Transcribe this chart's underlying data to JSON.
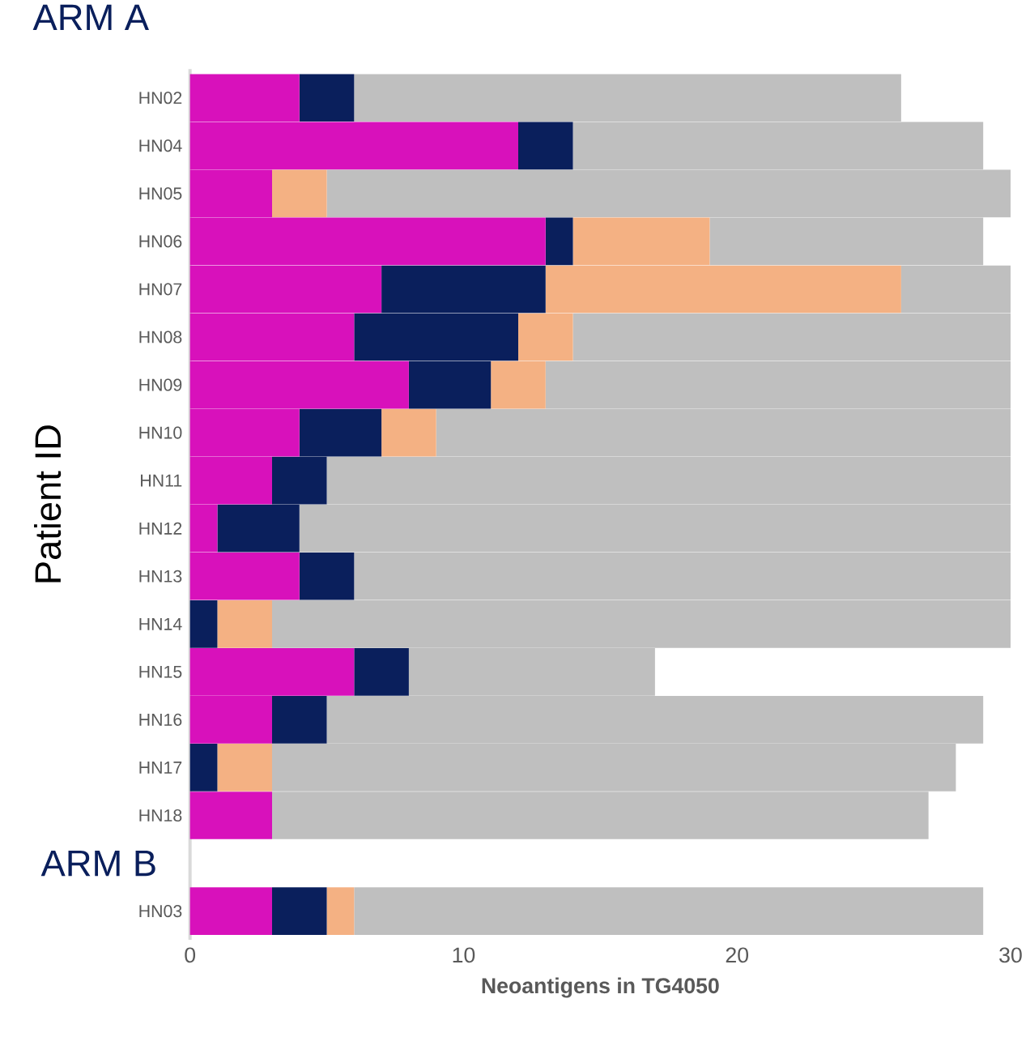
{
  "chart_data": {
    "type": "bar",
    "orientation": "horizontal",
    "stacked": true,
    "xlabel": "Neoantigens in TG4050",
    "ylabel": "Patient ID",
    "categories": [
      "HN02",
      "HN04",
      "HN05",
      "HN06",
      "HN07",
      "HN08",
      "HN09",
      "HN10",
      "HN11",
      "HN12",
      "HN13",
      "HN14",
      "HN15",
      "HN16",
      "HN17",
      "HN18",
      null,
      "HN03"
    ],
    "series": [
      {
        "color": "#d811bb",
        "values": [
          4,
          12,
          3,
          13,
          7,
          6,
          8,
          4,
          3,
          1,
          4,
          0,
          6,
          3,
          0,
          3,
          null,
          3
        ]
      },
      {
        "color": "#0a1f5c",
        "values": [
          2,
          2,
          0,
          1,
          6,
          6,
          3,
          3,
          2,
          3,
          2,
          1,
          2,
          2,
          1,
          0,
          null,
          2
        ]
      },
      {
        "color": "#f4b183",
        "values": [
          0,
          0,
          2,
          5,
          13,
          2,
          2,
          2,
          0,
          0,
          0,
          2,
          0,
          0,
          2,
          0,
          null,
          1
        ]
      },
      {
        "color": "#bfbfbf",
        "values": [
          20,
          15,
          25,
          10,
          4,
          16,
          17,
          21,
          25,
          26,
          24,
          27,
          9,
          24,
          25,
          24,
          null,
          23
        ]
      }
    ],
    "xlim": [
      0,
      30
    ],
    "xticks": [
      0,
      10,
      20,
      30
    ],
    "grid": false,
    "annotations": [
      "ARM A",
      "ARM B"
    ]
  }
}
